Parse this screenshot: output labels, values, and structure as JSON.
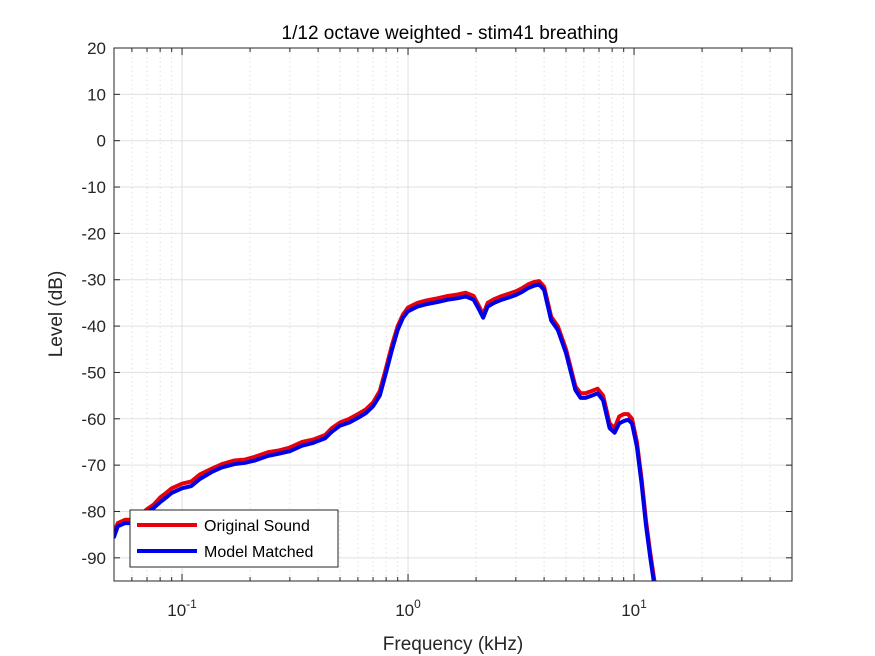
{
  "chart_data": {
    "type": "line",
    "title": "1/12 octave weighted - stim41 breathing",
    "xlabel": "Frequency (kHz)",
    "ylabel": "Level (dB)",
    "xscale": "log",
    "xlim": [
      0.05,
      50
    ],
    "ylim": [
      -95,
      20
    ],
    "x_ticks": [
      {
        "value": 0.1,
        "base": "10",
        "exp": "-1"
      },
      {
        "value": 1,
        "base": "10",
        "exp": "0"
      },
      {
        "value": 10,
        "base": "10",
        "exp": "1"
      }
    ],
    "y_ticks": [
      20,
      10,
      0,
      -10,
      -20,
      -30,
      -40,
      -50,
      -60,
      -70,
      -80,
      -90
    ],
    "grid": true,
    "minor_grid": true,
    "legend_position": "bottom-left",
    "series": [
      {
        "name": "Original Sound",
        "color": "#e8000b",
        "x": [
          0.05,
          0.052,
          0.056,
          0.06,
          0.065,
          0.07,
          0.075,
          0.08,
          0.085,
          0.09,
          0.1,
          0.11,
          0.12,
          0.135,
          0.15,
          0.17,
          0.19,
          0.21,
          0.24,
          0.27,
          0.3,
          0.34,
          0.38,
          0.43,
          0.46,
          0.5,
          0.55,
          0.6,
          0.65,
          0.7,
          0.75,
          0.8,
          0.85,
          0.9,
          0.95,
          1.0,
          1.1,
          1.2,
          1.35,
          1.5,
          1.65,
          1.8,
          1.95,
          2.05,
          2.15,
          2.25,
          2.4,
          2.6,
          2.8,
          3.0,
          3.2,
          3.4,
          3.6,
          3.8,
          4.0,
          4.3,
          4.6,
          5.0,
          5.5,
          5.8,
          6.1,
          6.5,
          6.9,
          7.3,
          7.8,
          8.2,
          8.6,
          9.0,
          9.4,
          9.8,
          10.3,
          10.8,
          11.3,
          11.8,
          12.4
        ],
        "values": [
          -84.5,
          -82.5,
          -81.8,
          -81.8,
          -80.8,
          -79.5,
          -78.5,
          -77.0,
          -76.0,
          -75.0,
          -74.0,
          -73.5,
          -72.0,
          -70.8,
          -69.8,
          -69.0,
          -68.8,
          -68.2,
          -67.2,
          -66.8,
          -66.2,
          -65.0,
          -64.5,
          -63.5,
          -62.0,
          -60.8,
          -60.0,
          -59.0,
          -58.0,
          -56.5,
          -54.0,
          -49.0,
          -44.0,
          -40.0,
          -37.5,
          -36.0,
          -35.0,
          -34.5,
          -34.0,
          -33.5,
          -33.2,
          -32.8,
          -33.5,
          -35.5,
          -37.5,
          -35.0,
          -34.2,
          -33.5,
          -33.0,
          -32.5,
          -31.8,
          -31.0,
          -30.5,
          -30.3,
          -31.5,
          -38.0,
          -40.0,
          -45.0,
          -53.0,
          -54.5,
          -54.5,
          -54.0,
          -53.5,
          -55.0,
          -61.0,
          -62.0,
          -59.5,
          -59.0,
          -59.0,
          -60.0,
          -65.0,
          -73.0,
          -82.0,
          -89.0,
          -96.0
        ]
      },
      {
        "name": "Model Matched",
        "color": "#0000e8",
        "x": [
          0.05,
          0.052,
          0.056,
          0.06,
          0.065,
          0.07,
          0.075,
          0.08,
          0.085,
          0.09,
          0.1,
          0.11,
          0.12,
          0.135,
          0.15,
          0.17,
          0.19,
          0.21,
          0.24,
          0.27,
          0.3,
          0.34,
          0.38,
          0.43,
          0.46,
          0.5,
          0.55,
          0.6,
          0.65,
          0.7,
          0.75,
          0.8,
          0.85,
          0.9,
          0.95,
          1.0,
          1.1,
          1.2,
          1.35,
          1.5,
          1.65,
          1.8,
          1.95,
          2.05,
          2.15,
          2.25,
          2.4,
          2.6,
          2.8,
          3.0,
          3.2,
          3.4,
          3.6,
          3.8,
          4.0,
          4.3,
          4.6,
          5.0,
          5.5,
          5.8,
          6.1,
          6.5,
          6.9,
          7.3,
          7.8,
          8.2,
          8.6,
          9.0,
          9.4,
          9.8,
          10.3,
          10.8,
          11.3,
          11.8,
          12.4
        ],
        "values": [
          -85.5,
          -83.2,
          -82.5,
          -82.5,
          -81.5,
          -80.2,
          -79.2,
          -78.0,
          -77.0,
          -76.0,
          -75.0,
          -74.5,
          -73.0,
          -71.5,
          -70.5,
          -69.8,
          -69.5,
          -69.0,
          -68.0,
          -67.5,
          -67.0,
          -65.8,
          -65.2,
          -64.2,
          -62.8,
          -61.5,
          -60.8,
          -59.8,
          -58.8,
          -57.3,
          -55.0,
          -50.0,
          -45.0,
          -40.8,
          -38.2,
          -36.8,
          -35.8,
          -35.3,
          -34.8,
          -34.3,
          -34.0,
          -33.6,
          -34.3,
          -36.2,
          -38.2,
          -35.8,
          -35.0,
          -34.3,
          -33.8,
          -33.3,
          -32.6,
          -31.8,
          -31.3,
          -31.0,
          -32.2,
          -38.8,
          -40.8,
          -45.8,
          -53.8,
          -55.5,
          -55.5,
          -55.0,
          -54.5,
          -56.0,
          -62.0,
          -63.0,
          -61.0,
          -60.5,
          -60.2,
          -61.0,
          -66.0,
          -74.0,
          -83.0,
          -90.0,
          -97.0
        ]
      }
    ]
  }
}
